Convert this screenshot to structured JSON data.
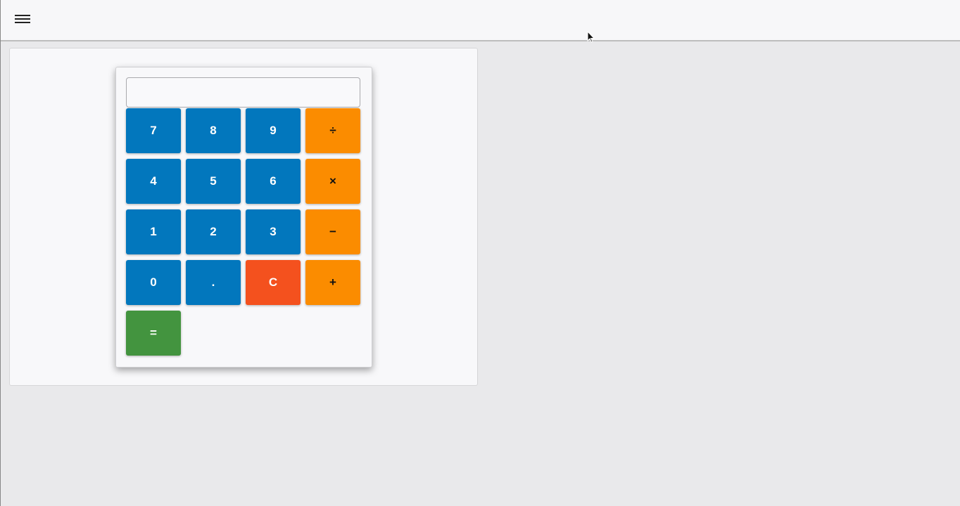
{
  "header": {
    "menu_icon": "hamburger-menu-icon"
  },
  "calculator": {
    "display_value": "",
    "buttons": [
      {
        "label": "7",
        "kind": "number"
      },
      {
        "label": "8",
        "kind": "number"
      },
      {
        "label": "9",
        "kind": "number"
      },
      {
        "label": "÷",
        "kind": "operator"
      },
      {
        "label": "4",
        "kind": "number"
      },
      {
        "label": "5",
        "kind": "number"
      },
      {
        "label": "6",
        "kind": "number"
      },
      {
        "label": "×",
        "kind": "operator"
      },
      {
        "label": "1",
        "kind": "number"
      },
      {
        "label": "2",
        "kind": "number"
      },
      {
        "label": "3",
        "kind": "number"
      },
      {
        "label": "−",
        "kind": "operator"
      },
      {
        "label": "0",
        "kind": "number"
      },
      {
        "label": ".",
        "kind": "number"
      },
      {
        "label": "C",
        "kind": "clear"
      },
      {
        "label": "+",
        "kind": "operator"
      },
      {
        "label": "=",
        "kind": "equals"
      }
    ],
    "colors": {
      "number": "#0277bd",
      "operator": "#fb8c00",
      "clear": "#f4511e",
      "equals": "#43943f"
    }
  }
}
